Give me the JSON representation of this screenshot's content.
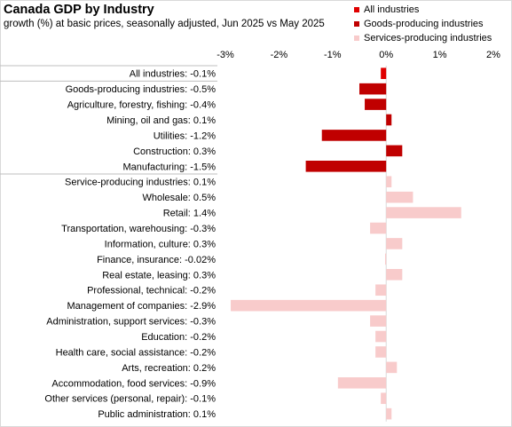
{
  "chart_data": {
    "type": "bar",
    "orientation": "horizontal",
    "title": "Canada GDP by Industry",
    "subtitle": "growth (%) at basic prices, seasonally  adjusted, Jun 2025 vs May  2025",
    "xlim": [
      -3,
      2
    ],
    "xticks": [
      "-3%",
      "-2%",
      "-1%",
      "0%",
      "1%",
      "2%"
    ],
    "legend_position": "top-right",
    "series": [
      {
        "name": "All industries",
        "color": "#e00000"
      },
      {
        "name": "Goods-producing industries",
        "color": "#c00000"
      },
      {
        "name": "Services-producing industries",
        "color": "#f8cbcb"
      }
    ],
    "categories": [
      {
        "label": "All industries: -0.1%",
        "value": -0.1,
        "series": 0
      },
      {
        "label": "Goods-producing industries: -0.5%",
        "value": -0.5,
        "series": 1
      },
      {
        "label": "Agriculture, forestry, fishing: -0.4%",
        "value": -0.4,
        "series": 1
      },
      {
        "label": "Mining, oil and gas: 0.1%",
        "value": 0.1,
        "series": 1
      },
      {
        "label": "Utilities: -1.2%",
        "value": -1.2,
        "series": 1
      },
      {
        "label": "Construction: 0.3%",
        "value": 0.3,
        "series": 1
      },
      {
        "label": "Manufacturing: -1.5%",
        "value": -1.5,
        "series": 1
      },
      {
        "label": "Service-producing industries: 0.1%",
        "value": 0.1,
        "series": 2
      },
      {
        "label": "Wholesale: 0.5%",
        "value": 0.5,
        "series": 2
      },
      {
        "label": "Retail: 1.4%",
        "value": 1.4,
        "series": 2
      },
      {
        "label": "Transportation, warehousing: -0.3%",
        "value": -0.3,
        "series": 2
      },
      {
        "label": "Information, culture: 0.3%",
        "value": 0.3,
        "series": 2
      },
      {
        "label": "Finance, insurance: -0.02%",
        "value": -0.02,
        "series": 2
      },
      {
        "label": "Real estate, leasing: 0.3%",
        "value": 0.3,
        "series": 2
      },
      {
        "label": "Professional, technical: -0.2%",
        "value": -0.2,
        "series": 2
      },
      {
        "label": "Management of companies: -2.9%",
        "value": -2.9,
        "series": 2
      },
      {
        "label": "Administration, support services: -0.3%",
        "value": -0.3,
        "series": 2
      },
      {
        "label": "Education: -0.2%",
        "value": -0.2,
        "series": 2
      },
      {
        "label": "Health care, social assistance: -0.2%",
        "value": -0.2,
        "series": 2
      },
      {
        "label": "Arts, recreation: 0.2%",
        "value": 0.2,
        "series": 2
      },
      {
        "label": "Accommodation, food services: -0.9%",
        "value": -0.9,
        "series": 2
      },
      {
        "label": "Other services (personal, repair): -0.1%",
        "value": -0.1,
        "series": 2
      },
      {
        "label": "Public administration: 0.1%",
        "value": 0.1,
        "series": 2
      }
    ]
  }
}
